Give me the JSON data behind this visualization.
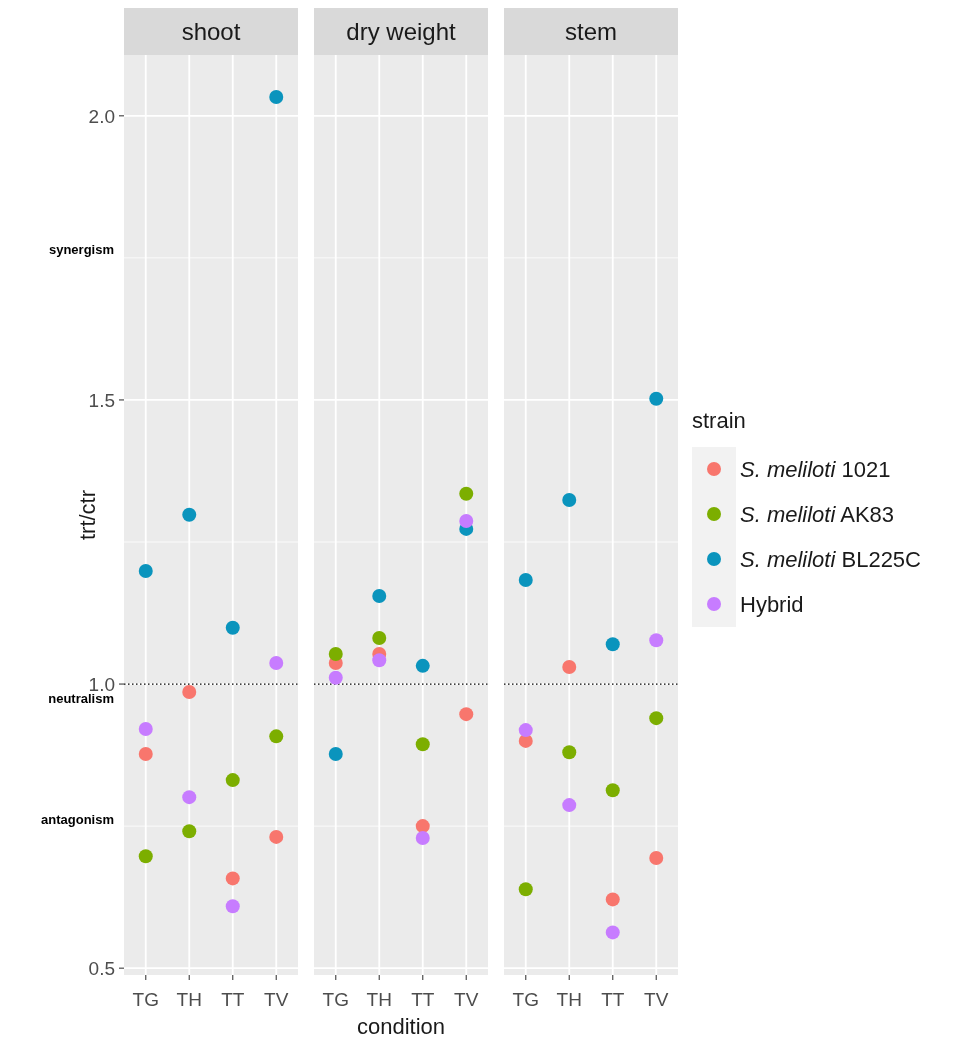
{
  "chart_data": [
    {
      "type": "scatter",
      "title": "shoot",
      "ylabel": "trt/ctr",
      "categories": [
        "TG",
        "TH",
        "TT",
        "TV"
      ],
      "ylim": [
        0.488,
        2.107
      ],
      "yticks": [
        {
          "value": 0.5,
          "label": "0.5"
        },
        {
          "value": 1.0,
          "label": "1.0"
        },
        {
          "value": 1.5,
          "label": "1.5"
        },
        {
          "value": 2.0,
          "label": "2.0"
        }
      ],
      "grid": true,
      "marker": "circle",
      "tick_labels": "xy",
      "ref_lines": [
        {
          "axis": "y",
          "value": 1.0,
          "line_style": "dotted",
          "color": "#000000"
        }
      ],
      "annotations": [
        "synergism",
        "neutralism",
        "antagonism"
      ],
      "series": [
        {
          "color": "#f8766d",
          "values": [
            0.877,
            0.986,
            0.658,
            0.731
          ]
        },
        {
          "color": "#7cae00",
          "values": [
            0.697,
            0.741,
            0.831,
            0.908
          ]
        },
        {
          "color": "#0a94bd",
          "values": [
            1.199,
            1.298,
            1.099,
            2.033
          ]
        },
        {
          "color": "#c77cff",
          "values": [
            0.921,
            0.801,
            0.609,
            1.037
          ]
        }
      ]
    },
    {
      "type": "scatter",
      "title": "dry weight",
      "xlabel": "condition",
      "categories": [
        "TG",
        "TH",
        "TT",
        "TV"
      ],
      "ylim": [
        0.488,
        2.107
      ],
      "yticks": [
        0.5,
        1.0,
        1.5,
        2.0
      ],
      "grid": true,
      "marker": "circle",
      "tick_labels": "x",
      "ref_lines": [
        {
          "axis": "y",
          "value": 1.0,
          "line_style": "dotted",
          "color": "#000000"
        }
      ],
      "series": [
        {
          "color": "#f8766d",
          "values": [
            1.037,
            1.053,
            0.75,
            0.947
          ]
        },
        {
          "color": "#7cae00",
          "values": [
            1.053,
            1.081,
            0.894,
            1.335
          ]
        },
        {
          "color": "#0a94bd",
          "values": [
            0.877,
            1.155,
            1.032,
            1.273
          ]
        },
        {
          "color": "#c77cff",
          "values": [
            1.011,
            1.042,
            0.729,
            1.287
          ]
        }
      ]
    },
    {
      "type": "scatter",
      "title": "stem",
      "legend_title": "strain",
      "legend": "right",
      "categories": [
        "TG",
        "TH",
        "TT",
        "TV"
      ],
      "ylim": [
        0.488,
        2.107
      ],
      "yticks": [
        0.5,
        1.0,
        1.5,
        2.0
      ],
      "grid": true,
      "marker": "circle",
      "tick_labels": "x",
      "ref_lines": [
        {
          "axis": "y",
          "value": 1.0,
          "line_style": "dotted",
          "color": "#000000"
        }
      ],
      "series": [
        {
          "name": "S. meliloti 1021",
          "color": "#f8766d",
          "values": [
            0.9,
            1.03,
            0.621,
            0.694
          ]
        },
        {
          "name": "S. meliloti AK83",
          "color": "#7cae00",
          "values": [
            0.639,
            0.88,
            0.813,
            0.94
          ]
        },
        {
          "name": "S. meliloti BL225C",
          "color": "#0a94bd",
          "values": [
            1.183,
            1.324,
            1.07,
            1.502
          ]
        },
        {
          "name": "Hybrid",
          "color": "#c77cff",
          "values": [
            0.919,
            0.787,
            0.563,
            1.077
          ]
        }
      ]
    }
  ]
}
